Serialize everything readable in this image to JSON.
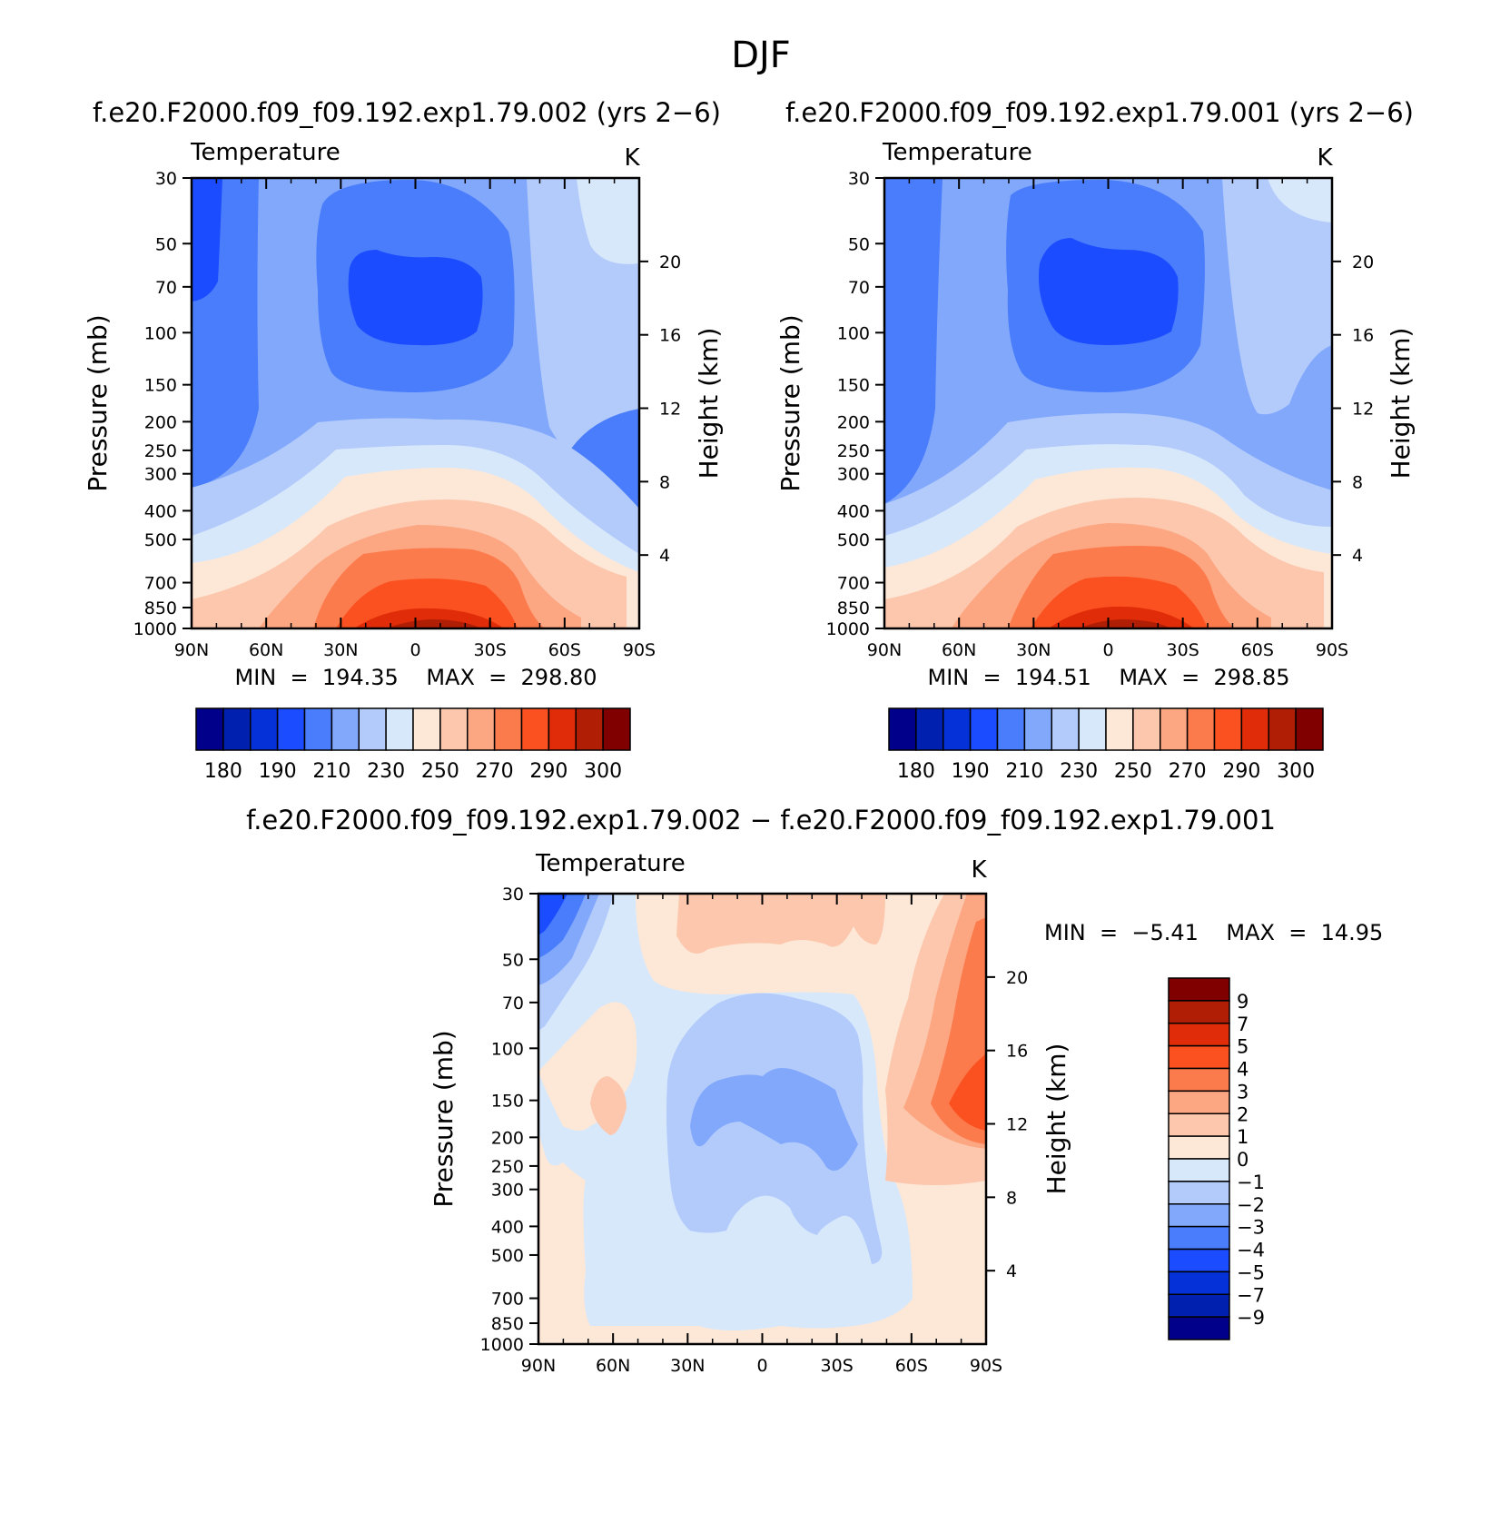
{
  "figure": {
    "title": "DJF"
  },
  "chart_data": [
    {
      "id": "top-left",
      "type": "contour",
      "case_title": "f.e20.F2000.f09_f09.192.exp1.79.002 (yrs 2−6)",
      "variable_label": "Temperature",
      "units_label": "K",
      "ylabel": "Pressure (mb)",
      "y2label": "Height (km)",
      "x_ticks": [
        "90N",
        "60N",
        "30N",
        "0",
        "30S",
        "60S",
        "90S"
      ],
      "y_ticks": [
        "30",
        "50",
        "70",
        "100",
        "150",
        "200",
        "250",
        "300",
        "400",
        "500",
        "700",
        "850",
        "1000"
      ],
      "y2_ticks": [
        "20",
        "16",
        "12",
        "8",
        "4"
      ],
      "stats_label": "MIN = 194.35 MAX = 298.80",
      "min": 194.35,
      "max": 298.8,
      "colorbar_labels": [
        "180",
        "190",
        "210",
        "230",
        "250",
        "270",
        "290",
        "300"
      ],
      "colorbar_colors": [
        "#00008b",
        "#0020b0",
        "#0532d8",
        "#1c4cff",
        "#4a7dfc",
        "#82a8fc",
        "#b3cbfb",
        "#d8e8fb",
        "#fde7d6",
        "#fcc7ad",
        "#fca682",
        "#fc7b4c",
        "#fb5120",
        "#e02c08",
        "#b01e06",
        "#800000"
      ]
    },
    {
      "id": "top-right",
      "type": "contour",
      "case_title": "f.e20.F2000.f09_f09.192.exp1.79.001 (yrs 2−6)",
      "variable_label": "Temperature",
      "units_label": "K",
      "ylabel": "Pressure (mb)",
      "y2label": "Height (km)",
      "x_ticks": [
        "90N",
        "60N",
        "30N",
        "0",
        "30S",
        "60S",
        "90S"
      ],
      "y_ticks": [
        "30",
        "50",
        "70",
        "100",
        "150",
        "200",
        "250",
        "300",
        "400",
        "500",
        "700",
        "850",
        "1000"
      ],
      "y2_ticks": [
        "20",
        "16",
        "12",
        "8",
        "4"
      ],
      "stats_label": "MIN = 194.51 MAX = 298.85",
      "min": 194.51,
      "max": 298.85,
      "colorbar_labels": [
        "180",
        "190",
        "210",
        "230",
        "250",
        "270",
        "290",
        "300"
      ],
      "colorbar_colors": [
        "#00008b",
        "#0020b0",
        "#0532d8",
        "#1c4cff",
        "#4a7dfc",
        "#82a8fc",
        "#b3cbfb",
        "#d8e8fb",
        "#fde7d6",
        "#fcc7ad",
        "#fca682",
        "#fc7b4c",
        "#fb5120",
        "#e02c08",
        "#b01e06",
        "#800000"
      ]
    },
    {
      "id": "bottom-diff",
      "type": "contour",
      "case_title": "f.e20.F2000.f09_f09.192.exp1.79.002 − f.e20.F2000.f09_f09.192.exp1.79.001",
      "variable_label": "Temperature",
      "units_label": "K",
      "ylabel": "Pressure (mb)",
      "y2label": "Height (km)",
      "x_ticks": [
        "90N",
        "60N",
        "30N",
        "0",
        "30S",
        "60S",
        "90S"
      ],
      "y_ticks": [
        "30",
        "50",
        "70",
        "100",
        "150",
        "200",
        "250",
        "300",
        "400",
        "500",
        "700",
        "850",
        "1000"
      ],
      "y2_ticks": [
        "20",
        "16",
        "12",
        "8",
        "4"
      ],
      "stats_label": "MIN = −5.41 MAX = 14.95",
      "min": -5.41,
      "max": 14.95,
      "colorbar_labels": [
        "9",
        "7",
        "5",
        "4",
        "3",
        "2",
        "1",
        "0",
        "−1",
        "−2",
        "−3",
        "−4",
        "−5",
        "−7",
        "−9"
      ],
      "colorbar_colors": [
        "#800000",
        "#b01e06",
        "#e02c08",
        "#fb5120",
        "#fc7b4c",
        "#fca682",
        "#fcc7ad",
        "#fde7d6",
        "#d8e8fb",
        "#b3cbfb",
        "#82a8fc",
        "#4a7dfc",
        "#1c4cff",
        "#0532d8",
        "#0020b0",
        "#00008b"
      ]
    }
  ]
}
